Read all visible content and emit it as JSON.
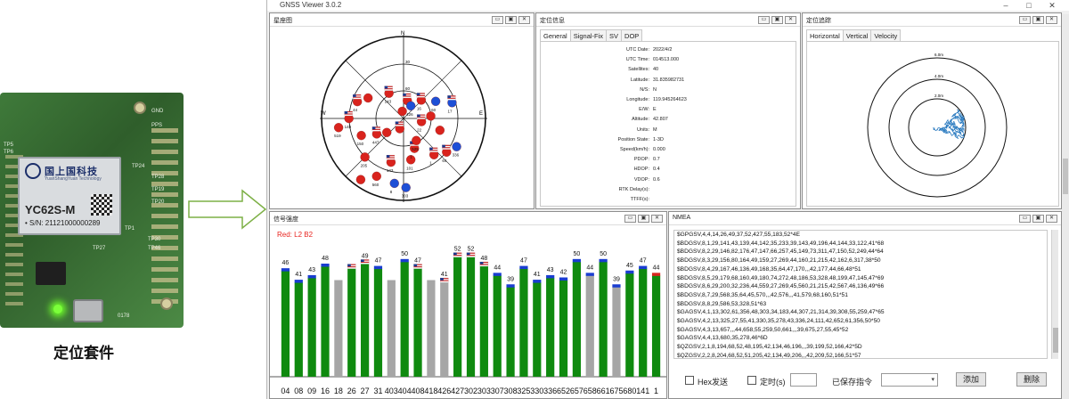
{
  "caption": "定位套件",
  "board": {
    "brand": "国上国科技",
    "brand_sub": "YuanShangYuan Technology",
    "model": "YC62S-M",
    "serial": "• S/N: 21121000000289",
    "silk": [
      {
        "text": "GND",
        "x": 170,
        "y": 18
      },
      {
        "text": "PPS",
        "x": 170,
        "y": 34
      },
      {
        "text": "TP24",
        "x": 148,
        "y": 80
      },
      {
        "text": "TP28",
        "x": 170,
        "y": 92
      },
      {
        "text": "TP19",
        "x": 170,
        "y": 106
      },
      {
        "text": "TP20",
        "x": 170,
        "y": 120
      },
      {
        "text": "TP1",
        "x": 140,
        "y": 150
      },
      {
        "text": "TP27",
        "x": 104,
        "y": 172
      },
      {
        "text": "TP30",
        "x": 166,
        "y": 162
      },
      {
        "text": "TP46",
        "x": 166,
        "y": 172
      },
      {
        "text": "TP5",
        "x": 4,
        "y": 56
      },
      {
        "text": "TP6",
        "x": 4,
        "y": 64
      },
      {
        "text": "0178",
        "x": 132,
        "y": 248
      }
    ]
  },
  "app": {
    "title": "GNSS Viewer  3.0.2",
    "win_min": "–",
    "win_max": "□",
    "win_close": "✕"
  },
  "panel_buttons": {
    "min": "▭",
    "restore": "▣",
    "close": "✕"
  },
  "skyview": {
    "title": "星座图",
    "north": "N",
    "south": "S",
    "east": "E",
    "west": "W",
    "elev_labels": [
      "30",
      "60"
    ],
    "sats": [
      {
        "az": 12,
        "el": 70,
        "color": "red",
        "flag": true,
        "label": "1"
      },
      {
        "az": 330,
        "el": 58,
        "color": "red",
        "flag": true,
        "label": "143"
      },
      {
        "az": 300,
        "el": 45,
        "color": "red",
        "flag": false,
        "label": ""
      },
      {
        "az": 290,
        "el": 36,
        "color": "red",
        "flag": true,
        "label": "44"
      },
      {
        "az": 270,
        "el": 30,
        "color": "red",
        "flag": true,
        "label": "148"
      },
      {
        "az": 262,
        "el": 18,
        "color": "red",
        "flag": false,
        "label": "519"
      },
      {
        "az": 248,
        "el": 40,
        "color": "red",
        "flag": false,
        "label": "150"
      },
      {
        "az": 240,
        "el": 56,
        "color": "red",
        "flag": true,
        "label": "447"
      },
      {
        "az": 225,
        "el": 30,
        "color": "red",
        "flag": false,
        "label": "205"
      },
      {
        "az": 215,
        "el": 8,
        "color": "red",
        "flag": false,
        "label": ""
      },
      {
        "az": 205,
        "el": 20,
        "color": "red",
        "flag": false,
        "label": "560"
      },
      {
        "az": 196,
        "el": 40,
        "color": "red",
        "flag": true,
        "label": "143"
      },
      {
        "az": 188,
        "el": 18,
        "color": "blue",
        "flag": false,
        "label": "8"
      },
      {
        "az": 178,
        "el": 14,
        "color": "blue",
        "flag": false,
        "label": "303"
      },
      {
        "az": 170,
        "el": 44,
        "color": "red",
        "flag": false,
        "label": "101"
      },
      {
        "az": 160,
        "el": 55,
        "color": "red",
        "flag": true,
        "label": "1"
      },
      {
        "az": 150,
        "el": 62,
        "color": "red",
        "flag": false,
        "label": "525"
      },
      {
        "az": 140,
        "el": 38,
        "color": "red",
        "flag": true,
        "label": "1"
      },
      {
        "az": 128,
        "el": 30,
        "color": "red",
        "flag": true,
        "label": "64"
      },
      {
        "az": 118,
        "el": 24,
        "color": "blue",
        "flag": false,
        "label": "336"
      },
      {
        "az": 108,
        "el": 48,
        "color": "red",
        "flag": false,
        "label": ""
      },
      {
        "az": 72,
        "el": 34,
        "color": "blue",
        "flag": true,
        "label": "17"
      },
      {
        "az": 62,
        "el": 50,
        "color": "blue",
        "flag": false,
        "label": "60"
      },
      {
        "az": 44,
        "el": 62,
        "color": "red",
        "flag": true,
        "label": "16"
      },
      {
        "az": 30,
        "el": 74,
        "color": "blue",
        "flag": false,
        "label": "426"
      },
      {
        "az": 350,
        "el": 82,
        "color": "red",
        "flag": false,
        "label": ""
      },
      {
        "az": 200,
        "el": 78,
        "color": "red",
        "flag": true,
        "label": ""
      },
      {
        "az": 230,
        "el": 66,
        "color": "red",
        "flag": false,
        "label": ""
      },
      {
        "az": 100,
        "el": 70,
        "color": "red",
        "flag": true,
        "label": "22"
      },
      {
        "az": 85,
        "el": 60,
        "color": "red",
        "flag": false,
        "label": ""
      }
    ]
  },
  "posinfo": {
    "title": "定位信息",
    "tabs": [
      "General",
      "Signal-Fix",
      "SV",
      "DOP"
    ],
    "rows": [
      {
        "label": "UTC Date:",
        "value": "2022/4/2"
      },
      {
        "label": "UTC Time:",
        "value": "014513.000"
      },
      {
        "label": "Satellites:",
        "value": "40"
      },
      {
        "label": "Latitude:",
        "value": "31.835982731"
      },
      {
        "label": "N/S:",
        "value": "N"
      },
      {
        "label": "Longitude:",
        "value": "119.945264623"
      },
      {
        "label": "E/W:",
        "value": "E"
      },
      {
        "label": "Altitude:",
        "value": "42.807"
      },
      {
        "label": "Units:",
        "value": "M"
      },
      {
        "label": "Position State:",
        "value": "1-3D"
      },
      {
        "label": "Speed(km/h):",
        "value": "0.000"
      },
      {
        "label": "PDOP:",
        "value": "0.7"
      },
      {
        "label": "HDOP:",
        "value": "0.4"
      },
      {
        "label": "VDOP:",
        "value": "0.6"
      },
      {
        "label": "RTK Delay(s):",
        "value": ""
      },
      {
        "label": "TTFF(s):",
        "value": ""
      }
    ]
  },
  "track": {
    "title": "定位追踪",
    "tabs": [
      "Horizontal",
      "Vertical",
      "Velocity"
    ],
    "ring_labels": [
      "6.0m",
      "4.0m",
      "2.0m"
    ]
  },
  "signal": {
    "title": "信号强度",
    "legend": "Red: L2 B2"
  },
  "chart_data": {
    "type": "bar",
    "categories": [
      "04",
      "08",
      "09",
      "16",
      "18",
      "26",
      "27",
      "31",
      "403",
      "404",
      "408",
      "418",
      "426",
      "427",
      "302",
      "303",
      "307",
      "308",
      "325",
      "330",
      "336",
      "652",
      "657",
      "658",
      "661",
      "675",
      "680",
      "141",
      "1"
    ],
    "values": [
      46,
      41,
      43,
      48,
      42,
      47,
      49,
      47,
      42,
      50,
      47,
      42,
      41,
      52,
      52,
      48,
      44,
      39,
      47,
      41,
      43,
      42,
      50,
      44,
      50,
      39,
      45,
      47,
      44
    ],
    "labels": [
      "46",
      "41",
      "43",
      "48",
      "",
      "",
      "49",
      "47",
      "",
      "50",
      "47",
      "",
      "41",
      "52",
      "52",
      "48",
      "44",
      "39",
      "47",
      "41",
      "43",
      "42",
      "50",
      "44",
      "50",
      "39",
      "45",
      "47",
      "44"
    ],
    "colors": [
      "green",
      "green",
      "green",
      "green",
      "gray",
      "green",
      "green",
      "green",
      "gray",
      "green",
      "green",
      "gray",
      "gray",
      "green",
      "green",
      "green",
      "green",
      "green",
      "green",
      "green",
      "green",
      "green",
      "green",
      "gray",
      "green",
      "gray",
      "green",
      "green",
      "green"
    ],
    "tops": [
      "blue",
      "blue",
      "blue",
      "blue",
      "none",
      "flag",
      "flag",
      "blue",
      "none",
      "blue",
      "flag",
      "none",
      "flag",
      "flag",
      "flag",
      "flag",
      "blue",
      "blue",
      "blue",
      "blue",
      "blue",
      "blue",
      "blue",
      "blue",
      "blue",
      "blue",
      "blue",
      "blue",
      "red"
    ],
    "ylim": [
      0,
      60
    ]
  },
  "nmea": {
    "title": "NMEA",
    "lines": [
      "$GPGSV,4,4,14,26,49,37,52,427,55,183,52*4E",
      "$BDGSV,8,1,29,141,43,139,44,142,35,233,39,143,49,196,44,144,33,122,41*68",
      "$BDGSV,8,2,29,146,82,176,47,147,66,257,45,149,73,311,47,150,52,249,44*64",
      "$BDGSV,8,3,29,156,80,164,49,159,27,269,44,160,21,215,42,162,6,317,38*50",
      "$BDGSV,8,4,29,167,46,136,49,168,35,64,47,170,,,42,177,44,66,48*51",
      "$BDGSV,8,5,29,179,68,160,49,180,74,272,48,186,53,328,48,199,47,145,47*69",
      "$BDGSV,8,6,29,200,32,236,44,559,27,269,45,560,21,215,42,567,46,136,49*66",
      "$BDGSV,8,7,29,568,35,64,45,570,,,42,576,,,41,579,68,160,51*51",
      "$BDGSV,8,8,29,586,53,328,51*63",
      "$GAGSV,4,1,13,302,61,356,48,303,34,183,44,307,21,314,39,308,55,259,47*65",
      "$GAGSV,4,2,13,325,27,55,41,330,35,278,43,336,24,111,42,652,61,356,50*50",
      "$GAGSV,4,3,13,657,,,44,658,55,259,50,661,,,39,675,27,55,45*52",
      "$GAGSV,4,4,13,680,35,278,46*6D",
      "$QZGSV,2,1,8,194,68,52,48,195,42,134,46,196,,,39,199,52,166,42*5D",
      "$QZGSV,2,2,8,204,68,52,51,205,42,134,49,206,,,42,209,52,166,51*57"
    ],
    "hex_label": "Hex发送",
    "timer_label": "定时(s)",
    "saved_label": "已保存指令",
    "add_label": "添加",
    "delete_label": "删除"
  }
}
